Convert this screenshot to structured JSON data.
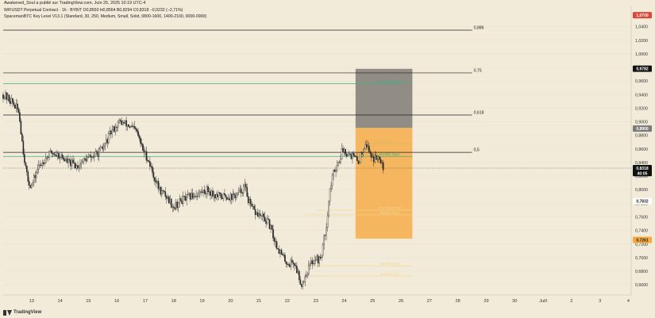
{
  "header": {
    "publisher_line": "Awakened_Soul a publié sur TradingView.com, Juin 25, 2025 10:19 UTC-4",
    "symbol_line": "WIFUSDT Perpetual Contract · 1h · BYBIT  O0,8550  H0,8564  B0,8294  C0,8318  −0,0232 (−2,71%)",
    "indicator_line": "SpacemanBTC Key Level V13.1 (Standard, 30, 250, Medium, Small, Solid, 0800-1600, 1400-2100, 0000-0900)"
  },
  "footer": {
    "brand": "TradingView"
  },
  "colors": {
    "background": "#f2ebda",
    "up": "#2a2a2a",
    "down": "#2a2a2a",
    "gray_box": "#8b8780",
    "orange_box": "#f5a940",
    "green_line": "#3bb27a"
  },
  "chart_data": {
    "type": "candlestick",
    "ylim": [
      0.645,
      1.07
    ],
    "y_ticks": [
      "1,0400",
      "1,0200",
      "1,0000",
      "0,9800",
      "0,9600",
      "0,9400",
      "0,9200",
      "0,9000",
      "0,8800",
      "0,8600",
      "0,8400",
      "0,8200",
      "0,8000",
      "0,7800",
      "0,7600",
      "0,7400",
      "0,7200",
      "0,7000",
      "0,6800",
      "0,6600"
    ],
    "y_tick_values": [
      1.04,
      1.02,
      1.0,
      0.98,
      0.96,
      0.94,
      0.92,
      0.9,
      0.88,
      0.86,
      0.84,
      0.82,
      0.8,
      0.78,
      0.76,
      0.74,
      0.72,
      0.7,
      0.68,
      0.66
    ],
    "x_ticks": [
      "13",
      "14",
      "15",
      "16",
      "17",
      "18",
      "19",
      "20",
      "21",
      "22",
      "23",
      "24",
      "25",
      "26",
      "27",
      "28",
      "29",
      "30",
      "Juill",
      "2",
      "3",
      "4"
    ],
    "x_tick_days": [
      13,
      14,
      15,
      16,
      17,
      18,
      19,
      20,
      21,
      22,
      23,
      24,
      25,
      26,
      27,
      28,
      29,
      30,
      31,
      32,
      33,
      34
    ],
    "x_range_days": [
      12.0,
      34.1
    ],
    "price_path": [
      [
        12.0,
        0.94
      ],
      [
        12.3,
        0.93
      ],
      [
        12.55,
        0.915
      ],
      [
        12.7,
        0.86
      ],
      [
        12.85,
        0.815
      ],
      [
        13.0,
        0.805
      ],
      [
        13.2,
        0.83
      ],
      [
        13.45,
        0.845
      ],
      [
        13.7,
        0.855
      ],
      [
        14.0,
        0.85
      ],
      [
        14.3,
        0.84
      ],
      [
        14.6,
        0.835
      ],
      [
        14.9,
        0.845
      ],
      [
        15.2,
        0.85
      ],
      [
        15.5,
        0.86
      ],
      [
        15.8,
        0.885
      ],
      [
        16.1,
        0.9
      ],
      [
        16.4,
        0.895
      ],
      [
        16.7,
        0.885
      ],
      [
        16.9,
        0.86
      ],
      [
        17.1,
        0.845
      ],
      [
        17.3,
        0.82
      ],
      [
        17.5,
        0.8
      ],
      [
        17.75,
        0.79
      ],
      [
        18.0,
        0.775
      ],
      [
        18.3,
        0.785
      ],
      [
        18.6,
        0.79
      ],
      [
        18.9,
        0.795
      ],
      [
        19.2,
        0.8
      ],
      [
        19.5,
        0.79
      ],
      [
        19.8,
        0.79
      ],
      [
        20.1,
        0.79
      ],
      [
        20.3,
        0.795
      ],
      [
        20.5,
        0.805
      ],
      [
        20.7,
        0.775
      ],
      [
        20.9,
        0.765
      ],
      [
        21.1,
        0.76
      ],
      [
        21.35,
        0.75
      ],
      [
        21.6,
        0.72
      ],
      [
        21.85,
        0.7
      ],
      [
        22.05,
        0.69
      ],
      [
        22.2,
        0.695
      ],
      [
        22.35,
        0.68
      ],
      [
        22.5,
        0.66
      ],
      [
        22.65,
        0.675
      ],
      [
        22.8,
        0.69
      ],
      [
        23.0,
        0.7
      ],
      [
        23.15,
        0.695
      ],
      [
        23.35,
        0.74
      ],
      [
        23.5,
        0.8
      ],
      [
        23.65,
        0.83
      ],
      [
        23.8,
        0.84
      ],
      [
        23.95,
        0.86
      ],
      [
        24.1,
        0.855
      ],
      [
        24.3,
        0.85
      ],
      [
        24.5,
        0.84
      ],
      [
        24.75,
        0.87
      ],
      [
        24.9,
        0.855
      ],
      [
        25.05,
        0.845
      ],
      [
        25.25,
        0.85
      ],
      [
        25.4,
        0.832
      ]
    ],
    "levels": [
      {
        "label": "0,886",
        "value": 1.035,
        "x_start": 12.0,
        "x_end": 28.5,
        "kind": "fib"
      },
      {
        "label": "0,75",
        "value": 0.972,
        "x_start": 12.0,
        "x_end": 28.5,
        "kind": "fib"
      },
      {
        "label": "0,618",
        "value": 0.91,
        "x_start": 12.0,
        "x_end": 28.5,
        "kind": "fib"
      },
      {
        "label": "0,5",
        "value": 0.855,
        "x_start": 12.0,
        "x_end": 28.5,
        "kind": "fib"
      }
    ],
    "key_levels": [
      {
        "label": "Prev Month Mid",
        "value": 0.956,
        "x_start": 12.0,
        "x_end": 26.4,
        "color": "#3bb27a"
      },
      {
        "label": "Daily Open",
        "value": 0.868,
        "x_start": 24.8,
        "x_end": 26.4,
        "color": "#d9b85a"
      },
      {
        "label": "Monthly Open",
        "value": 0.849,
        "x_start": 12.0,
        "x_end": 26.4,
        "color": "#3bb27a"
      },
      {
        "label": "Prev Week Mid",
        "value": 0.77,
        "x_start": 23.0,
        "x_end": 26.4,
        "color": "#f0d890"
      },
      {
        "label": "Weekly Open",
        "value": 0.763,
        "x_start": 22.6,
        "x_end": 26.4,
        "color": "#f0d890"
      },
      {
        "label": "Weekly Open",
        "value": 0.688,
        "x_start": 22.6,
        "x_end": 26.4,
        "color": "#f0d890"
      },
      {
        "label": "Monthly Low",
        "value": 0.673,
        "x_start": 22.6,
        "x_end": 26.4,
        "color": "#f0d890"
      }
    ],
    "boxes": [
      {
        "kind": "stop_zone",
        "x_start": 24.4,
        "x_end": 26.4,
        "y_top": 0.978,
        "y_bottom": 0.891,
        "color": "#8b8780"
      },
      {
        "kind": "target_zone",
        "x_start": 24.4,
        "x_end": 26.4,
        "y_top": 0.891,
        "y_bottom": 0.728,
        "color": "#f5a940"
      }
    ],
    "price_badges": [
      {
        "label": "1,0700",
        "value": 1.057,
        "bg": "#e0453b",
        "fg": "#ffffff"
      },
      {
        "label": "0,9782",
        "value": 0.9782,
        "bg": "#111111",
        "fg": "#ffffff"
      },
      {
        "label": "0,8900",
        "value": 0.89,
        "bg": "#7a7a7a",
        "fg": "#ffffff"
      },
      {
        "label": "0,8318",
        "value": 0.8318,
        "bg": "#111111",
        "fg": "#ffffff"
      },
      {
        "label": "40:05",
        "value": 0.8245,
        "bg": "#111111",
        "fg": "#ffffff"
      },
      {
        "label": "0,7832",
        "value": 0.7832,
        "bg": "#ffffff",
        "fg": "#222222"
      },
      {
        "label": "0,7261",
        "value": 0.7261,
        "bg": "#f5a940",
        "fg": "#222222"
      }
    ],
    "last_price": 0.8318
  }
}
